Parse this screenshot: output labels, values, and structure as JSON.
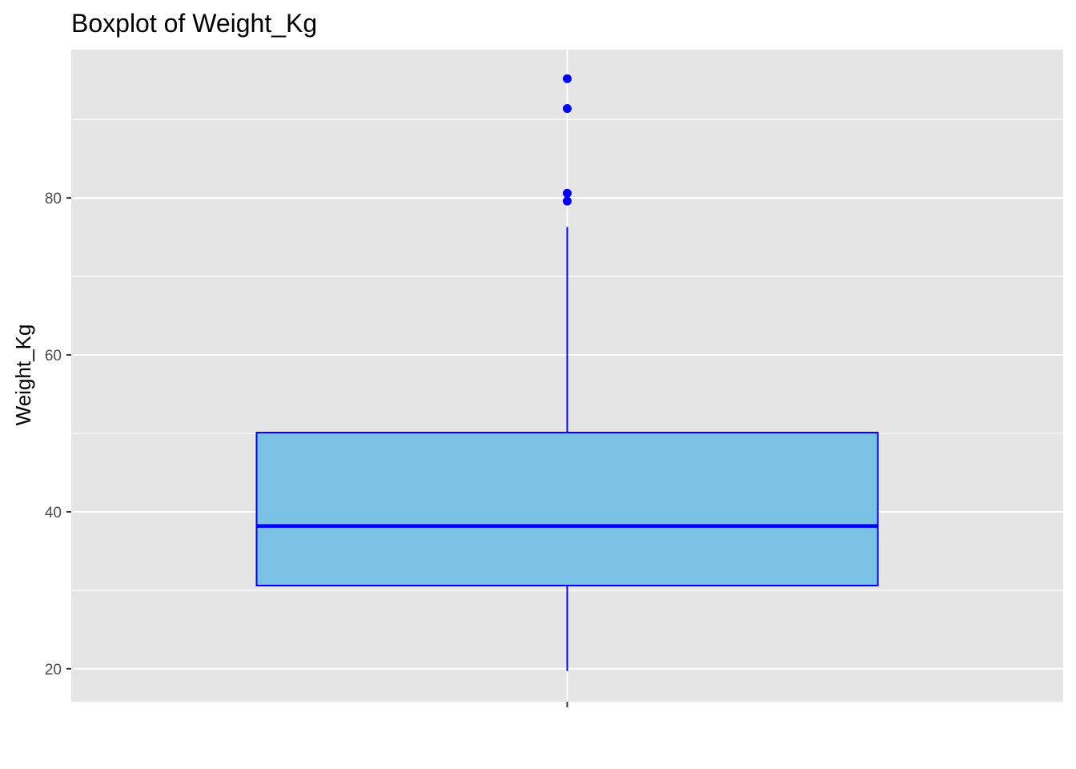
{
  "chart_data": {
    "type": "boxplot",
    "title": "Boxplot of Weight_Kg",
    "xlabel": "",
    "ylabel": "Weight_Kg",
    "ylim": [
      15.8,
      98.9
    ],
    "y_ticks": [
      20,
      40,
      60,
      80
    ],
    "y_tick_labels": [
      "20",
      "40",
      "60",
      "80"
    ],
    "grid": true,
    "legend": "none",
    "box": {
      "whisker_low": 19.7,
      "q1": 30.6,
      "median": 38.2,
      "q3": 50.1,
      "whisker_high": 76.3,
      "outliers": [
        79.6,
        80.6,
        91.4,
        95.2
      ]
    },
    "colors": {
      "panel_background": "#e5e5e5",
      "grid": "#ffffff",
      "box_fill": "#79c1e5",
      "box_outline": "#0000ff",
      "outlier_points": "#0000ff"
    }
  }
}
